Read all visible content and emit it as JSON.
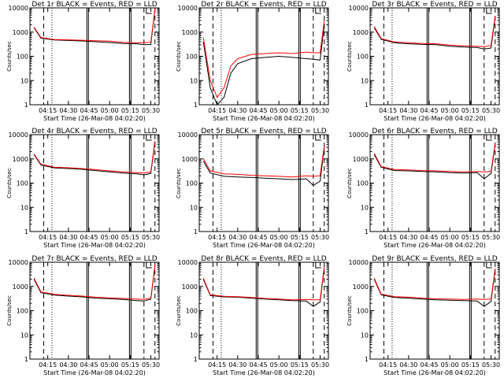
{
  "figure": {
    "xlabel": "Start Time (26-Mar-08 04:02:20)",
    "ylabel": "Counts/sec",
    "x_ticks": [
      "04:15",
      "04:30",
      "04:45",
      "05:00",
      "05:15",
      "05:30"
    ],
    "y_ticks": [
      "1",
      "10",
      "100",
      "1000",
      "10000"
    ],
    "colors": {
      "events": "#000000",
      "lld": "#ff0000",
      "axes": "#000000",
      "background": "#ffffff"
    }
  },
  "chart_data": [
    {
      "type": "line",
      "title": "Det 1r BLACK = Events, RED = LLD",
      "x": [
        "04:05",
        "04:10",
        "04:20",
        "04:30",
        "04:40",
        "04:50",
        "05:00",
        "05:10",
        "05:20",
        "05:25",
        "05:30",
        "05:33"
      ],
      "ylim": [
        1,
        10000
      ],
      "yscale": "log",
      "series": [
        {
          "name": "Events",
          "values": [
            1500,
            560,
            470,
            450,
            430,
            400,
            370,
            340,
            330,
            300,
            310,
            9000
          ]
        },
        {
          "name": "LLD",
          "values": [
            1600,
            600,
            490,
            480,
            460,
            440,
            420,
            380,
            360,
            370,
            380,
            9000
          ]
        }
      ]
    },
    {
      "type": "line",
      "title": "Det 2r BLACK = Events, RED = LLD",
      "x": [
        "04:05",
        "04:10",
        "04:15",
        "04:20",
        "04:25",
        "04:30",
        "04:40",
        "04:50",
        "05:00",
        "05:10",
        "05:20",
        "05:25",
        "05:30",
        "05:33"
      ],
      "ylim": [
        1,
        10000
      ],
      "yscale": "log",
      "series": [
        {
          "name": "Events",
          "values": [
            400,
            5,
            1,
            2,
            20,
            50,
            80,
            90,
            100,
            90,
            80,
            75,
            70,
            2000
          ]
        },
        {
          "name": "LLD",
          "values": [
            600,
            10,
            2,
            5,
            40,
            80,
            120,
            130,
            140,
            130,
            150,
            140,
            140,
            3000
          ]
        }
      ]
    },
    {
      "type": "line",
      "title": "Det 3r BLACK = Events, RED = LLD",
      "x": [
        "04:05",
        "04:10",
        "04:20",
        "04:30",
        "04:40",
        "04:50",
        "05:00",
        "05:10",
        "05:20",
        "05:25",
        "05:30",
        "05:33"
      ],
      "ylim": [
        1,
        10000
      ],
      "yscale": "log",
      "series": [
        {
          "name": "Events",
          "values": [
            1500,
            500,
            360,
            330,
            310,
            300,
            260,
            240,
            230,
            200,
            220,
            4000
          ]
        },
        {
          "name": "LLD",
          "values": [
            1700,
            540,
            390,
            360,
            340,
            330,
            290,
            270,
            260,
            250,
            280,
            4500
          ]
        }
      ]
    },
    {
      "type": "line",
      "title": "Det 4r BLACK = Events, RED = LLD",
      "x": [
        "04:05",
        "04:10",
        "04:20",
        "04:30",
        "04:40",
        "04:50",
        "05:00",
        "05:10",
        "05:20",
        "05:25",
        "05:30",
        "05:33"
      ],
      "ylim": [
        1,
        10000
      ],
      "yscale": "log",
      "series": [
        {
          "name": "Events",
          "values": [
            1500,
            560,
            420,
            400,
            370,
            330,
            290,
            260,
            240,
            220,
            250,
            5000
          ]
        },
        {
          "name": "LLD",
          "values": [
            1600,
            600,
            450,
            430,
            400,
            360,
            320,
            290,
            270,
            260,
            290,
            5500
          ]
        }
      ]
    },
    {
      "type": "line",
      "title": "Det 5r BLACK = Events, RED = LLD",
      "x": [
        "04:05",
        "04:10",
        "04:20",
        "04:30",
        "04:40",
        "04:50",
        "05:00",
        "05:10",
        "05:20",
        "05:25",
        "05:30",
        "05:33"
      ],
      "ylim": [
        1,
        10000
      ],
      "yscale": "log",
      "series": [
        {
          "name": "Events",
          "values": [
            800,
            260,
            190,
            180,
            170,
            160,
            150,
            140,
            150,
            80,
            120,
            3000
          ]
        },
        {
          "name": "LLD",
          "values": [
            1000,
            320,
            240,
            230,
            210,
            200,
            190,
            180,
            200,
            190,
            200,
            3500
          ]
        }
      ]
    },
    {
      "type": "line",
      "title": "Det 6r BLACK = Events, RED = LLD",
      "x": [
        "04:05",
        "04:10",
        "04:20",
        "04:30",
        "04:40",
        "04:50",
        "05:00",
        "05:10",
        "05:20",
        "05:25",
        "05:30",
        "05:33"
      ],
      "ylim": [
        1,
        10000
      ],
      "yscale": "log",
      "series": [
        {
          "name": "Events",
          "values": [
            1500,
            450,
            330,
            320,
            300,
            290,
            270,
            260,
            270,
            150,
            250,
            4000
          ]
        },
        {
          "name": "LLD",
          "values": [
            1700,
            480,
            360,
            350,
            330,
            320,
            300,
            290,
            300,
            290,
            300,
            4500
          ]
        }
      ]
    },
    {
      "type": "line",
      "title": "Det 7r BLACK = Events, RED = LLD",
      "x": [
        "04:05",
        "04:10",
        "04:20",
        "04:30",
        "04:40",
        "04:50",
        "05:00",
        "05:10",
        "05:20",
        "05:25",
        "05:30",
        "05:33"
      ],
      "ylim": [
        1,
        10000
      ],
      "yscale": "log",
      "series": [
        {
          "name": "Events",
          "values": [
            2000,
            550,
            440,
            400,
            370,
            330,
            310,
            290,
            260,
            250,
            300,
            7000
          ]
        },
        {
          "name": "LLD",
          "values": [
            2200,
            600,
            470,
            430,
            400,
            360,
            340,
            320,
            300,
            290,
            330,
            7500
          ]
        }
      ]
    },
    {
      "type": "line",
      "title": "Det 8r BLACK = Events, RED = LLD",
      "x": [
        "04:05",
        "04:10",
        "04:20",
        "04:30",
        "04:40",
        "04:50",
        "05:00",
        "05:10",
        "05:20",
        "05:25",
        "05:30",
        "05:33"
      ],
      "ylim": [
        1,
        10000
      ],
      "yscale": "log",
      "series": [
        {
          "name": "Events",
          "values": [
            2000,
            420,
            370,
            360,
            330,
            300,
            280,
            260,
            250,
            150,
            230,
            6000
          ]
        },
        {
          "name": "LLD",
          "values": [
            2200,
            450,
            390,
            380,
            350,
            320,
            300,
            280,
            290,
            280,
            280,
            6500
          ]
        }
      ]
    },
    {
      "type": "line",
      "title": "Det 9r BLACK = Events, RED = LLD",
      "x": [
        "04:05",
        "04:10",
        "04:20",
        "04:30",
        "04:40",
        "04:50",
        "05:00",
        "05:10",
        "05:20",
        "05:25",
        "05:30",
        "05:33"
      ],
      "ylim": [
        1,
        10000
      ],
      "yscale": "log",
      "series": [
        {
          "name": "Events",
          "values": [
            2000,
            450,
            350,
            330,
            300,
            280,
            270,
            260,
            250,
            150,
            240,
            5000
          ]
        },
        {
          "name": "LLD",
          "values": [
            2200,
            480,
            380,
            360,
            330,
            310,
            300,
            290,
            300,
            290,
            300,
            5500
          ]
        }
      ]
    }
  ]
}
